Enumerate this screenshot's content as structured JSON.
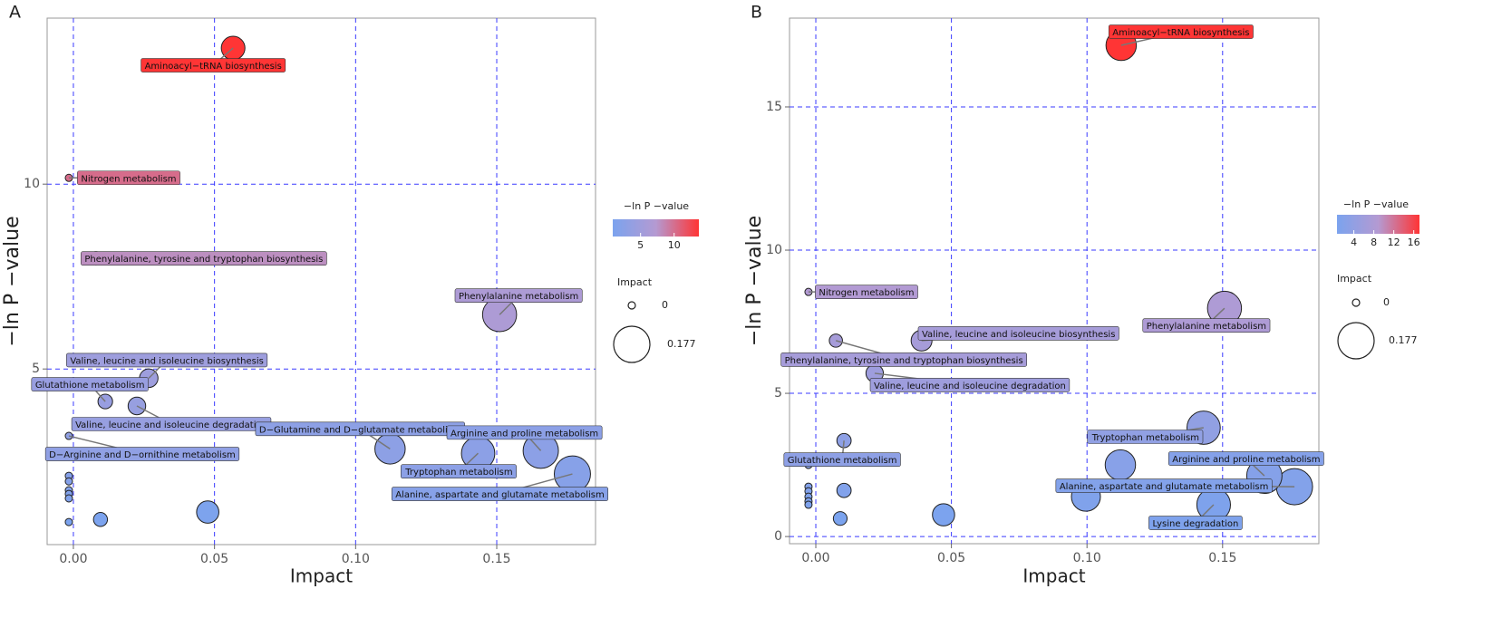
{
  "chart_data": [
    {
      "type": "scatter",
      "panel": "A",
      "xlabel": "Impact",
      "ylabel": "−ln P −value",
      "x": [
        0.0566,
        -0.0016,
        0.008,
        0.151,
        0.0267,
        0.0113,
        0.0225,
        -0.0016,
        0.1122,
        0.1656,
        0.1434,
        0.1768,
        -0.0016,
        -0.0016,
        -0.0016,
        -0.0016,
        -0.0016,
        -0.0016,
        0.0096,
        0.0476
      ],
      "values": [
        13.68,
        10.17,
        7.99,
        6.47,
        4.75,
        4.12,
        4.0,
        3.19,
        2.84,
        2.79,
        2.72,
        2.16,
        2.11,
        1.96,
        1.72,
        1.62,
        1.5,
        0.86,
        0.93,
        1.13
      ],
      "labels": [
        "Aminoacyl−tRNA biosynthesis",
        "Nitrogen metabolism",
        "Phenylalanine, tyrosine and tryptophan biosynthesis",
        "Phenylalanine metabolism",
        "Valine, leucine and isoleucine biosynthesis",
        "Glutathione metabolism",
        "Valine, leucine and isoleucine degradation",
        "D−Arginine and D−ornithine metabolism",
        "D−Glutamine and D−glutamate metabolism",
        "Arginine and proline metabolism",
        "Tryptophan metabolism",
        "Alanine, aspartate and glutamate metabolism",
        null,
        null,
        null,
        null,
        null,
        null,
        null,
        null
      ],
      "xlim": [
        -0.0093,
        0.185
      ],
      "ylim": [
        0.25,
        14.49
      ],
      "xticks": [
        {
          "value": 0,
          "label": "0.00"
        },
        0.05,
        {
          "value": 0.1,
          "label": "0.10"
        },
        0.15
      ],
      "yticks": [
        5,
        10
      ],
      "grid": true,
      "colors": [
        "#7ba3ee",
        "#b49ad2",
        "#ff3535"
      ],
      "colorbar": {
        "title": "−ln P −value",
        "ticks": [
          5,
          10
        ]
      },
      "size_legend": {
        "title": "Impact",
        "values": [
          0,
          0.177
        ]
      }
    },
    {
      "type": "scatter",
      "panel": "B",
      "xlabel": "Impact",
      "ylabel": "−ln P −value",
      "x": [
        0.1126,
        -0.0027,
        0.1507,
        0.0074,
        0.039,
        0.0217,
        0.143,
        0.0104,
        0.1654,
        0.1123,
        0.1765,
        0.1467,
        0.0996,
        0.0104,
        0.0471,
        0.009,
        -0.0027,
        -0.0027,
        -0.0027,
        -0.0027,
        -0.0027,
        -0.0027
      ],
      "values": [
        17.15,
        8.54,
        7.97,
        6.84,
        6.84,
        5.7,
        3.8,
        3.35,
        2.12,
        2.5,
        1.74,
        1.11,
        1.39,
        1.61,
        0.76,
        0.63,
        2.5,
        1.74,
        1.58,
        1.39,
        1.23,
        1.11
      ],
      "labels": [
        "Aminoacyl−tRNA biosynthesis",
        "Nitrogen metabolism",
        "Phenylalanine metabolism",
        "Phenylalanine, tyrosine and tryptophan biosynthesis",
        "Valine, leucine and isoleucine biosynthesis",
        "Valine, leucine and isoleucine degradation",
        "Tryptophan metabolism",
        "Glutathione metabolism",
        "Arginine and proline metabolism",
        null,
        "Alanine, aspartate and glutamate metabolism",
        "Lysine degradation",
        null,
        null,
        null,
        null,
        null,
        null,
        null,
        null,
        null,
        null
      ],
      "xlim": [
        -0.0097,
        0.1855
      ],
      "ylim": [
        -0.25,
        18.1
      ],
      "xticks": [
        {
          "value": 0,
          "label": "0.00"
        },
        0.05,
        {
          "value": 0.1,
          "label": "0.10"
        },
        0.15
      ],
      "yticks": [
        0,
        5,
        10,
        15
      ],
      "grid": true,
      "colors": [
        "#7ba3ee",
        "#b49ad2",
        "#ff3535"
      ],
      "colorbar": {
        "title": "−ln P −value",
        "ticks": [
          4,
          8,
          12,
          16
        ]
      },
      "size_legend": {
        "title": "Impact",
        "values": [
          0,
          0.177
        ]
      }
    }
  ]
}
